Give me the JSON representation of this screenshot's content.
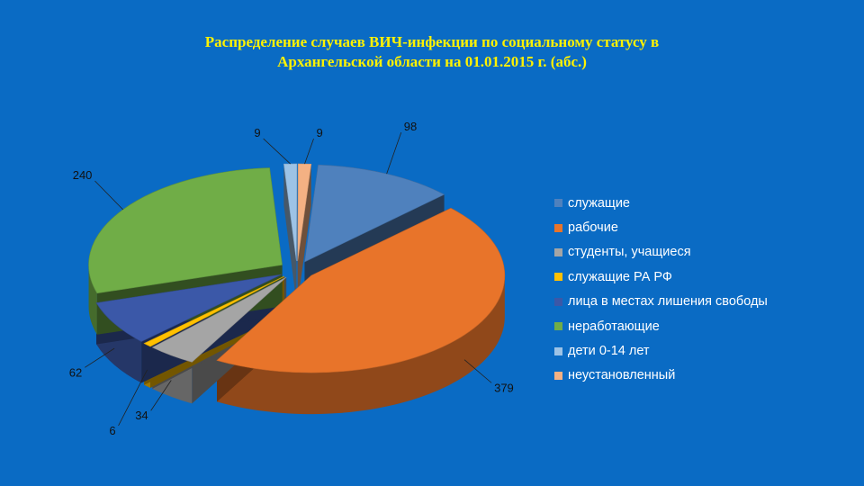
{
  "chart_data": {
    "type": "pie",
    "title": "Распределение случаев ВИЧ-инфекции по социальному статусу в Архангельской области на 01.01.2015 г. (абс.)",
    "title_lines": [
      "Распределение случаев ВИЧ-инфекции по социальному статусу в",
      "Архангельской области на 01.01.2015 г. (абс.)"
    ],
    "three_d": true,
    "legend_position": "right",
    "slices": [
      {
        "label": "служащие",
        "value": 98,
        "color": "#4f81bd"
      },
      {
        "label": "рабочие",
        "value": 379,
        "color": "#e8742a"
      },
      {
        "label": "студенты, учащиеся",
        "value": 34,
        "color": "#a5a5a5"
      },
      {
        "label": "служащие РА РФ",
        "value": 6,
        "color": "#ffc000"
      },
      {
        "label": "лица в местах лишения свободы",
        "value": 62,
        "color": "#3b58a8"
      },
      {
        "label": "неработающие",
        "value": 240,
        "color": "#70ad47"
      },
      {
        "label": "дети  0-14 лет",
        "value": 9,
        "color": "#9dc3e6"
      },
      {
        "label": "неустановленный",
        "value": 9,
        "color": "#f4b183"
      }
    ]
  }
}
